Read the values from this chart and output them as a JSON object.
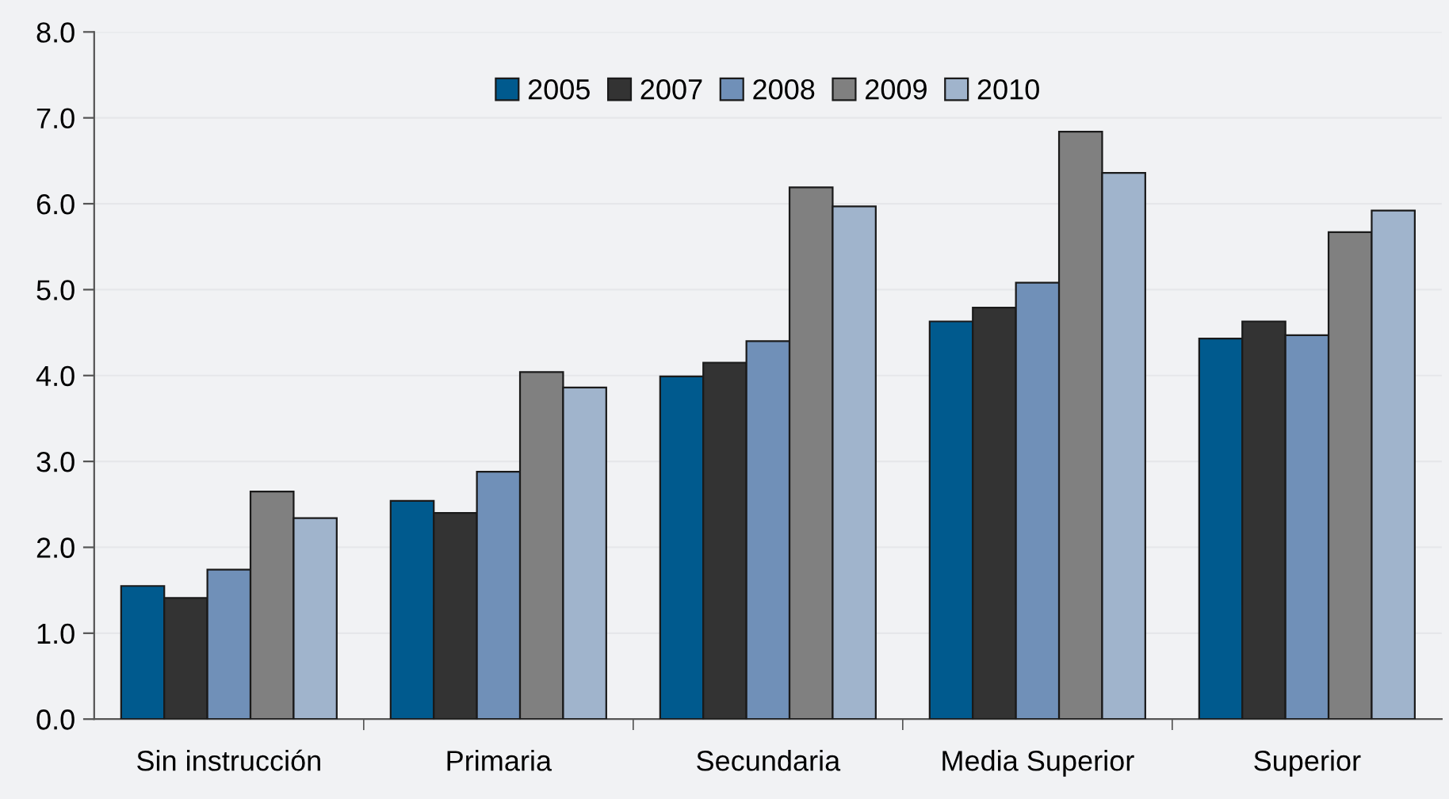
{
  "chart_data": {
    "type": "bar",
    "categories": [
      "Sin instrucción",
      "Primaria",
      "Secundaria",
      "Media Superior",
      "Superior"
    ],
    "series": [
      {
        "name": "2005",
        "color": "#005a8e",
        "values": [
          1.55,
          2.54,
          3.99,
          4.63,
          4.43
        ]
      },
      {
        "name": "2007",
        "color": "#333333",
        "values": [
          1.41,
          2.4,
          4.15,
          4.79,
          4.63
        ]
      },
      {
        "name": "2008",
        "color": "#7090b8",
        "values": [
          1.74,
          2.88,
          4.4,
          5.08,
          4.47
        ]
      },
      {
        "name": "2009",
        "color": "#808080",
        "values": [
          2.65,
          4.04,
          6.19,
          6.84,
          5.67
        ]
      },
      {
        "name": "2010",
        "color": "#a0b4cc",
        "values": [
          2.34,
          3.86,
          5.97,
          6.36,
          5.92
        ]
      }
    ],
    "ylim": [
      0,
      8
    ],
    "yticks": [
      {
        "value": 0,
        "label": "0.0"
      },
      {
        "value": 1,
        "label": "1.0"
      },
      {
        "value": 2,
        "label": "2.0"
      },
      {
        "value": 3,
        "label": "3.0"
      },
      {
        "value": 4,
        "label": "4.0"
      },
      {
        "value": 5,
        "label": "5.0"
      },
      {
        "value": 6,
        "label": "6.0"
      },
      {
        "value": 7,
        "label": "7.0"
      },
      {
        "value": 8,
        "label": "8.0"
      }
    ],
    "grid": "y",
    "legend": "top"
  }
}
